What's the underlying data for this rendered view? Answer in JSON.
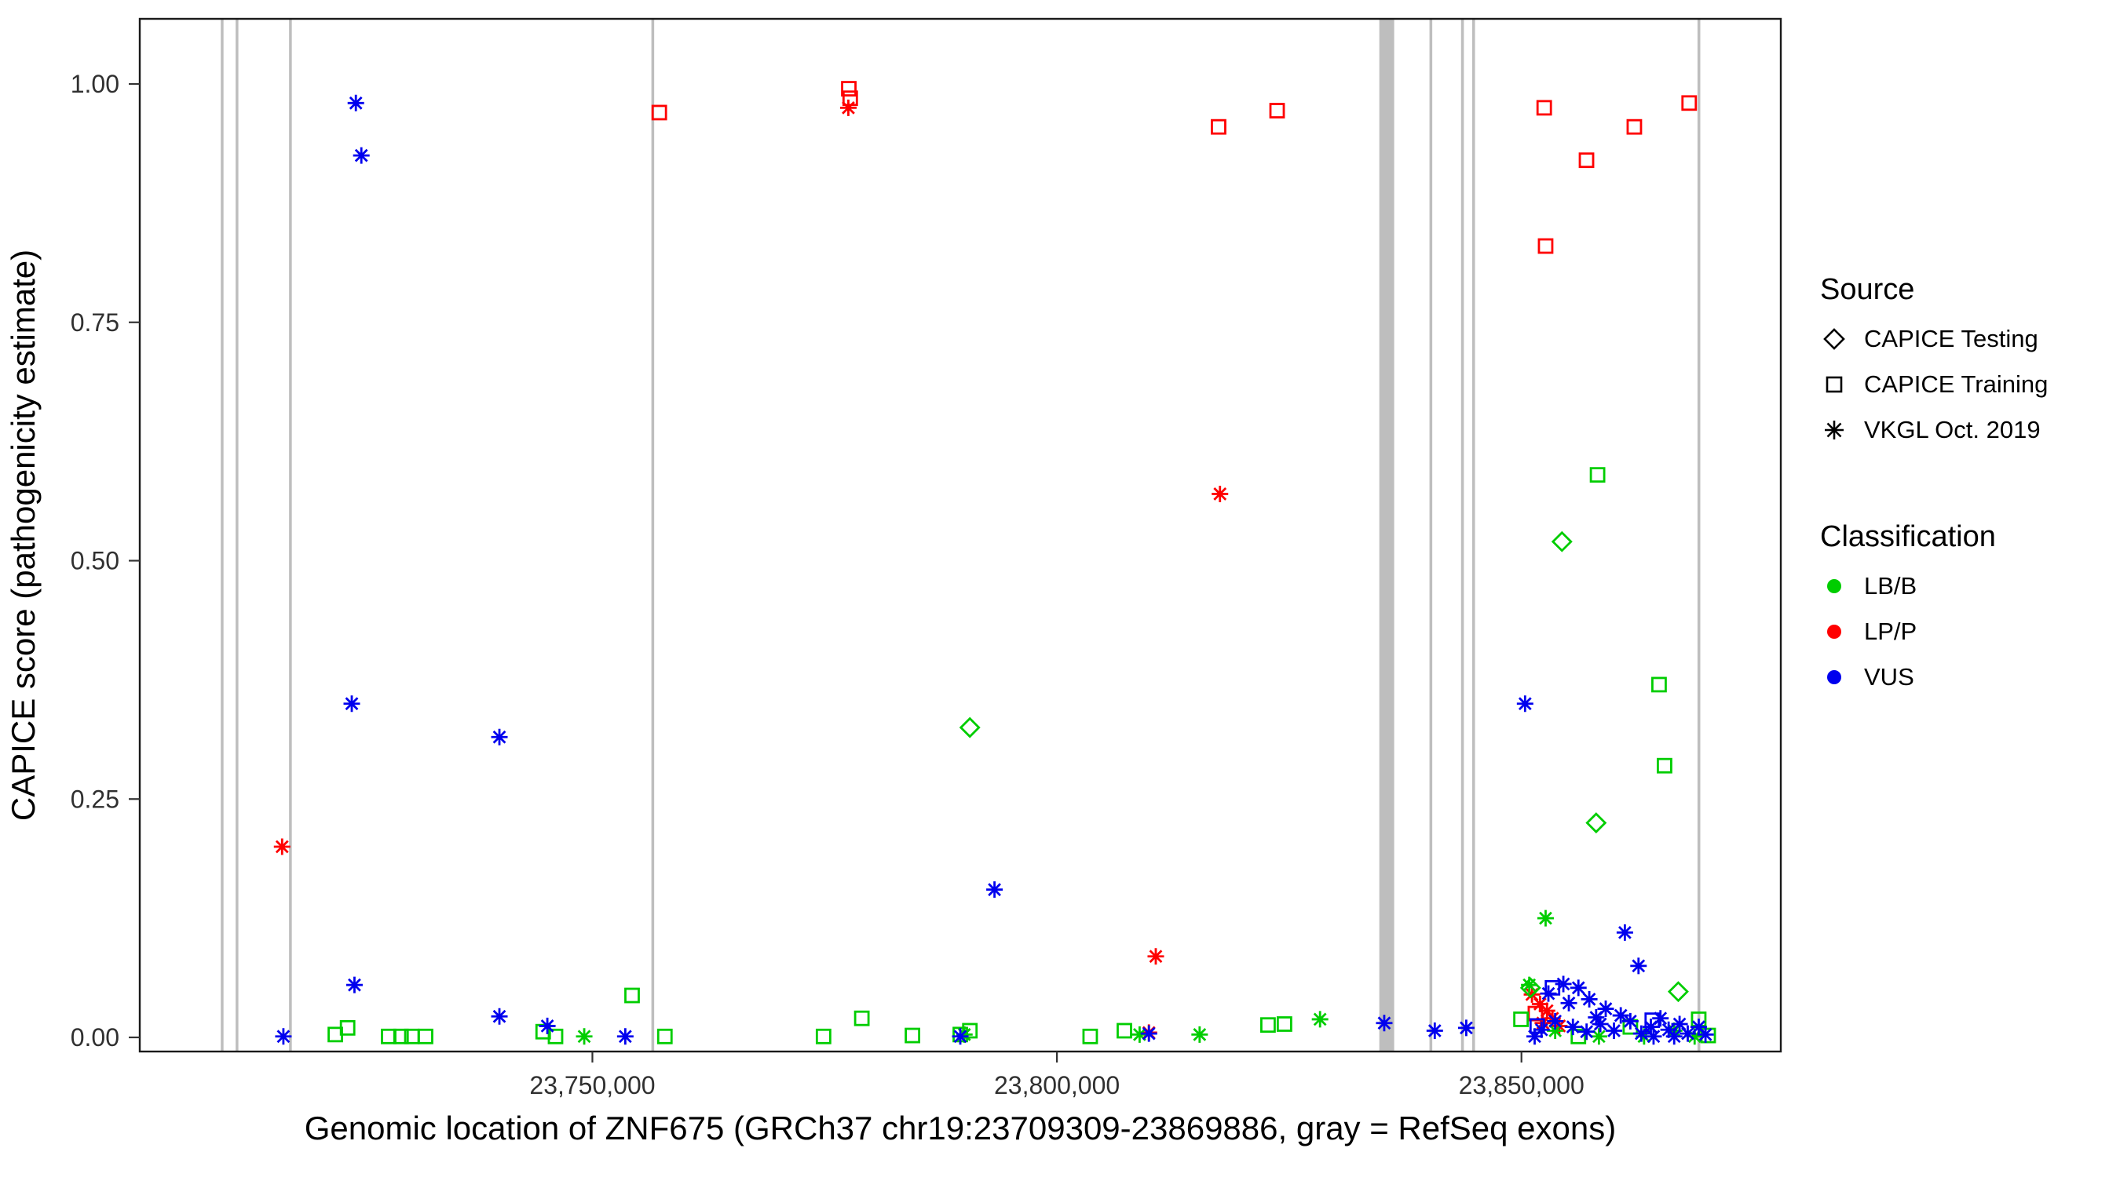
{
  "chart_data": {
    "type": "scatter",
    "title": "",
    "xlabel": "Genomic location of ZNF675 (GRCh37 chr19:23709309-23869886, gray = RefSeq exons)",
    "ylabel": "CAPICE score (pathogenicity estimate)",
    "xlim": [
      23701280,
      23877915
    ],
    "ylim": [
      -0.012,
      1.066
    ],
    "grid": "off",
    "x_ticks": [
      {
        "value": 23750000,
        "label": "23,750,000"
      },
      {
        "value": 23800000,
        "label": "23,800,000"
      },
      {
        "value": 23850000,
        "label": "23,850,000"
      }
    ],
    "y_ticks": [
      {
        "value": 0.0,
        "label": "0.00"
      },
      {
        "value": 0.25,
        "label": "0.25"
      },
      {
        "value": 0.5,
        "label": "0.50"
      },
      {
        "value": 0.75,
        "label": "0.75"
      },
      {
        "value": 1.0,
        "label": "1.00"
      }
    ],
    "exon_color": "#BEBEBE",
    "exons": [
      {
        "start": 23710000,
        "end": 23710260
      },
      {
        "start": 23711600,
        "end": 23711860
      },
      {
        "start": 23717350,
        "end": 23717610
      },
      {
        "start": 23756350,
        "end": 23756650
      },
      {
        "start": 23834700,
        "end": 23836300
      },
      {
        "start": 23840100,
        "end": 23840400
      },
      {
        "start": 23843500,
        "end": 23843800
      },
      {
        "start": 23844700,
        "end": 23845000
      },
      {
        "start": 23868950,
        "end": 23869250
      }
    ],
    "classification_colors": {
      "LB/B": "#00CD00",
      "LP/P": "#FF0000",
      "VUS": "#0000EE"
    },
    "source_shapes": {
      "CAPICE Testing": "diamond",
      "CAPICE Training": "square",
      "VKGL Oct. 2019": "asterisk"
    },
    "source_codes": {
      "T": "CAPICE Testing",
      "Q": "CAPICE Training",
      "V": "VKGL Oct. 2019"
    },
    "class_codes": {
      "B": "LB/B",
      "P": "LP/P",
      "U": "VUS"
    },
    "legend": {
      "source_title": "Source",
      "source_items": [
        "CAPICE Testing",
        "CAPICE Training",
        "VKGL Oct. 2019"
      ],
      "classification_title": "Classification",
      "classification_items": [
        "LB/B",
        "LP/P",
        "VUS"
      ]
    },
    "points": {
      "columns": [
        "genomic_position",
        "capice_score",
        "source_code",
        "class_code"
      ],
      "rows": [
        [
          23716600,
          0.2,
          "V",
          "P"
        ],
        [
          23757200,
          0.97,
          "Q",
          "P"
        ],
        [
          23777600,
          0.995,
          "Q",
          "P"
        ],
        [
          23777750,
          0.985,
          "Q",
          "P"
        ],
        [
          23777550,
          0.975,
          "V",
          "P"
        ],
        [
          23817400,
          0.955,
          "Q",
          "P"
        ],
        [
          23823700,
          0.972,
          "Q",
          "P"
        ],
        [
          23817550,
          0.57,
          "V",
          "P"
        ],
        [
          23810640,
          0.085,
          "V",
          "P"
        ],
        [
          23809900,
          0.005,
          "V",
          "P"
        ],
        [
          23852450,
          0.975,
          "Q",
          "P"
        ],
        [
          23852600,
          0.83,
          "Q",
          "P"
        ],
        [
          23857000,
          0.92,
          "Q",
          "P"
        ],
        [
          23862150,
          0.955,
          "Q",
          "P"
        ],
        [
          23868050,
          0.98,
          "Q",
          "P"
        ],
        [
          23851130,
          0.045,
          "V",
          "P"
        ],
        [
          23852000,
          0.035,
          "V",
          "P"
        ],
        [
          23852750,
          0.028,
          "V",
          "P"
        ],
        [
          23853340,
          0.02,
          "V",
          "P"
        ],
        [
          23854070,
          0.012,
          "V",
          "P"
        ],
        [
          23851500,
          0.025,
          "Q",
          "P"
        ],
        [
          23852300,
          0.015,
          "V",
          "P"
        ],
        [
          23722330,
          0.003,
          "Q",
          "B"
        ],
        [
          23723650,
          0.01,
          "Q",
          "B"
        ],
        [
          23728070,
          0.001,
          "Q",
          "B"
        ],
        [
          23729400,
          0.001,
          "Q",
          "B"
        ],
        [
          23730570,
          0.001,
          "Q",
          "B"
        ],
        [
          23732040,
          0.001,
          "Q",
          "B"
        ],
        [
          23744700,
          0.006,
          "Q",
          "B"
        ],
        [
          23746030,
          0.001,
          "Q",
          "B"
        ],
        [
          23754270,
          0.044,
          "Q",
          "B"
        ],
        [
          23757800,
          0.001,
          "Q",
          "B"
        ],
        [
          23774880,
          0.001,
          "Q",
          "B"
        ],
        [
          23779000,
          0.02,
          "Q",
          "B"
        ],
        [
          23784450,
          0.002,
          "Q",
          "B"
        ],
        [
          23789600,
          0.003,
          "Q",
          "B"
        ],
        [
          23790630,
          0.007,
          "Q",
          "B"
        ],
        [
          23803580,
          0.001,
          "Q",
          "B"
        ],
        [
          23807260,
          0.007,
          "Q",
          "B"
        ],
        [
          23822720,
          0.013,
          "Q",
          "B"
        ],
        [
          23824490,
          0.014,
          "Q",
          "B"
        ],
        [
          23849950,
          0.019,
          "Q",
          "B"
        ],
        [
          23858190,
          0.59,
          "Q",
          "B"
        ],
        [
          23864810,
          0.37,
          "Q",
          "B"
        ],
        [
          23865400,
          0.285,
          "Q",
          "B"
        ],
        [
          23856130,
          0.001,
          "Q",
          "B"
        ],
        [
          23869080,
          0.019,
          "Q",
          "B"
        ],
        [
          23870100,
          0.002,
          "Q",
          "B"
        ],
        [
          23861720,
          0.011,
          "Q",
          "B"
        ],
        [
          23749120,
          0.001,
          "V",
          "B"
        ],
        [
          23790040,
          0.003,
          "V",
          "B"
        ],
        [
          23808900,
          0.003,
          "V",
          "B"
        ],
        [
          23815360,
          0.003,
          "V",
          "B"
        ],
        [
          23828320,
          0.019,
          "V",
          "B"
        ],
        [
          23850840,
          0.055,
          "V",
          "B"
        ],
        [
          23852600,
          0.125,
          "V",
          "B"
        ],
        [
          23853630,
          0.007,
          "V",
          "B"
        ],
        [
          23858340,
          0.001,
          "V",
          "B"
        ],
        [
          23863200,
          0.001,
          "V",
          "B"
        ],
        [
          23866440,
          0.007,
          "V",
          "B"
        ],
        [
          23868640,
          0.001,
          "V",
          "B"
        ],
        [
          23790630,
          0.325,
          "T",
          "B"
        ],
        [
          23854360,
          0.52,
          "T",
          "B"
        ],
        [
          23858040,
          0.225,
          "T",
          "B"
        ],
        [
          23866880,
          0.048,
          "T",
          "B"
        ],
        [
          23850980,
          0.052,
          "T",
          "B"
        ],
        [
          23724540,
          0.98,
          "V",
          "U"
        ],
        [
          23725130,
          0.925,
          "V",
          "U"
        ],
        [
          23724100,
          0.35,
          "V",
          "U"
        ],
        [
          23739990,
          0.315,
          "V",
          "U"
        ],
        [
          23724390,
          0.055,
          "V",
          "U"
        ],
        [
          23716740,
          0.001,
          "V",
          "U"
        ],
        [
          23739990,
          0.022,
          "V",
          "U"
        ],
        [
          23745150,
          0.012,
          "V",
          "U"
        ],
        [
          23753540,
          0.001,
          "V",
          "U"
        ],
        [
          23793280,
          0.155,
          "V",
          "U"
        ],
        [
          23789600,
          0.001,
          "V",
          "U"
        ],
        [
          23809900,
          0.004,
          "V",
          "U"
        ],
        [
          23835230,
          0.015,
          "V",
          "U"
        ],
        [
          23840670,
          0.007,
          "V",
          "U"
        ],
        [
          23844060,
          0.01,
          "V",
          "U"
        ],
        [
          23850390,
          0.35,
          "V",
          "U"
        ],
        [
          23861130,
          0.11,
          "V",
          "U"
        ],
        [
          23862600,
          0.075,
          "V",
          "U"
        ],
        [
          23854510,
          0.056,
          "V",
          "U"
        ],
        [
          23856130,
          0.052,
          "V",
          "U"
        ],
        [
          23852900,
          0.046,
          "V",
          "U"
        ],
        [
          23855100,
          0.036,
          "V",
          "U"
        ],
        [
          23857300,
          0.04,
          "V",
          "U"
        ],
        [
          23859070,
          0.03,
          "V",
          "U"
        ],
        [
          23860690,
          0.023,
          "V",
          "U"
        ],
        [
          23853630,
          0.017,
          "V",
          "U"
        ],
        [
          23855540,
          0.011,
          "V",
          "U"
        ],
        [
          23857010,
          0.006,
          "V",
          "U"
        ],
        [
          23858490,
          0.014,
          "V",
          "U"
        ],
        [
          23859960,
          0.007,
          "V",
          "U"
        ],
        [
          23861720,
          0.017,
          "V",
          "U"
        ],
        [
          23862900,
          0.004,
          "V",
          "U"
        ],
        [
          23863930,
          0.011,
          "V",
          "U"
        ],
        [
          23864960,
          0.02,
          "V",
          "U"
        ],
        [
          23865840,
          0.008,
          "V",
          "U"
        ],
        [
          23867020,
          0.014,
          "V",
          "U"
        ],
        [
          23867900,
          0.004,
          "V",
          "U"
        ],
        [
          23869080,
          0.011,
          "V",
          "U"
        ],
        [
          23869810,
          0.003,
          "V",
          "U"
        ],
        [
          23852160,
          0.008,
          "V",
          "U"
        ],
        [
          23851420,
          0.001,
          "V",
          "U"
        ],
        [
          23858040,
          0.021,
          "V",
          "U"
        ],
        [
          23864220,
          0.001,
          "V",
          "U"
        ],
        [
          23866440,
          0.001,
          "V",
          "U"
        ],
        [
          23853340,
          0.052,
          "Q",
          "U"
        ],
        [
          23864080,
          0.018,
          "Q",
          "U"
        ],
        [
          23851700,
          0.012,
          "Q",
          "U"
        ]
      ]
    }
  }
}
